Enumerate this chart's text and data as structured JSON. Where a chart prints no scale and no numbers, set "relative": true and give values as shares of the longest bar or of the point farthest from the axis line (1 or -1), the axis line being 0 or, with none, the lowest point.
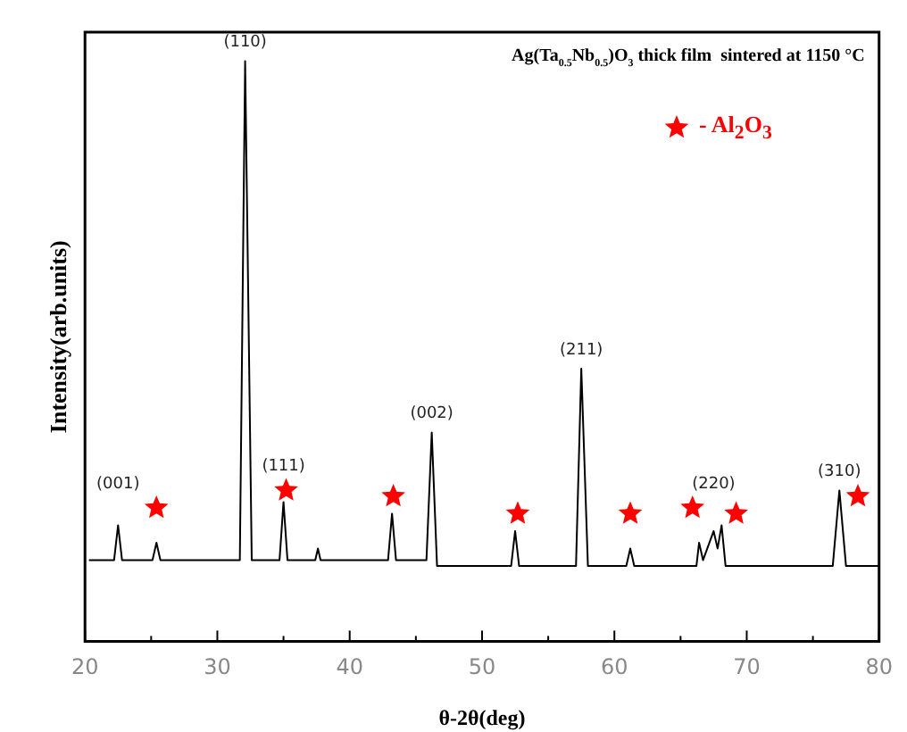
{
  "chart_data": {
    "type": "line",
    "title": "Ag(Ta$_{0.5}$Nb$_{0.5}$)O$_{3}$ thick film  sintered at 1150 °C",
    "xlabel": "θ-2θ(deg)",
    "ylabel": "Intensity(arb.units)",
    "relative": true,
    "xlim": [
      20,
      80
    ],
    "xticks": [
      20,
      {
        "value": 25,
        "label": null
      },
      30,
      {
        "value": 35,
        "label": null
      },
      40,
      {
        "value": 45,
        "label": null
      },
      50,
      {
        "value": 55,
        "label": null
      },
      60,
      {
        "value": 65,
        "label": null
      },
      70,
      {
        "value": 75,
        "label": null
      },
      80
    ],
    "grid": false,
    "legend": "top right",
    "tick_labels": "x",
    "series": [
      {
        "type": "line",
        "color": "#000000",
        "marker": "none",
        "x": [
          20.3,
          22.2,
          22.5,
          22.8,
          25.1,
          25.4,
          25.7,
          31.7,
          32.1,
          32.6,
          34.7,
          35.0,
          35.3,
          37.4,
          37.6,
          37.8,
          42.9,
          43.2,
          43.5,
          45.8,
          46.2,
          46.6,
          52.2,
          52.5,
          52.8,
          57.1,
          57.5,
          58.0,
          60.9,
          61.2,
          61.5,
          66.2,
          66.4,
          66.7,
          67.5,
          67.8,
          68.1,
          68.4,
          76.5,
          77.0,
          77.5,
          80.0
        ],
        "values": [
          0.14,
          0.14,
          0.2,
          0.14,
          0.14,
          0.17,
          0.14,
          0.14,
          1.0,
          0.14,
          0.14,
          0.24,
          0.14,
          0.14,
          0.16,
          0.14,
          0.14,
          0.22,
          0.14,
          0.14,
          0.36,
          0.13,
          0.13,
          0.19,
          0.13,
          0.13,
          0.47,
          0.13,
          0.13,
          0.16,
          0.13,
          0.13,
          0.17,
          0.14,
          0.19,
          0.16,
          0.2,
          0.13,
          0.13,
          0.26,
          0.13,
          0.13
        ]
      },
      {
        "type": "scatter",
        "name": "- Al$_{2}$O$_{3}$",
        "color": "#ff0000",
        "marker": "star",
        "x": [
          25.4,
          35.2,
          43.3,
          52.7,
          61.2,
          65.9,
          69.2,
          78.4
        ],
        "values": [
          0.23,
          0.26,
          0.25,
          0.22,
          0.22,
          0.23,
          0.22,
          0.25
        ]
      }
    ],
    "annotations": [
      {
        "text": "(001)",
        "x": 22.5,
        "y": 0.2
      },
      {
        "text": "(110)",
        "x": 32.1,
        "y": 1.0
      },
      {
        "text": "(111)",
        "x": 35.0,
        "y": 0.24
      },
      {
        "text": "(002)",
        "x": 46.2,
        "y": 0.36
      },
      {
        "text": "(211)",
        "x": 57.5,
        "y": 0.47
      },
      {
        "text": "(220)",
        "x": 67.5,
        "y": 0.2
      },
      {
        "text": "(310)",
        "x": 77.0,
        "y": 0.26
      }
    ]
  }
}
